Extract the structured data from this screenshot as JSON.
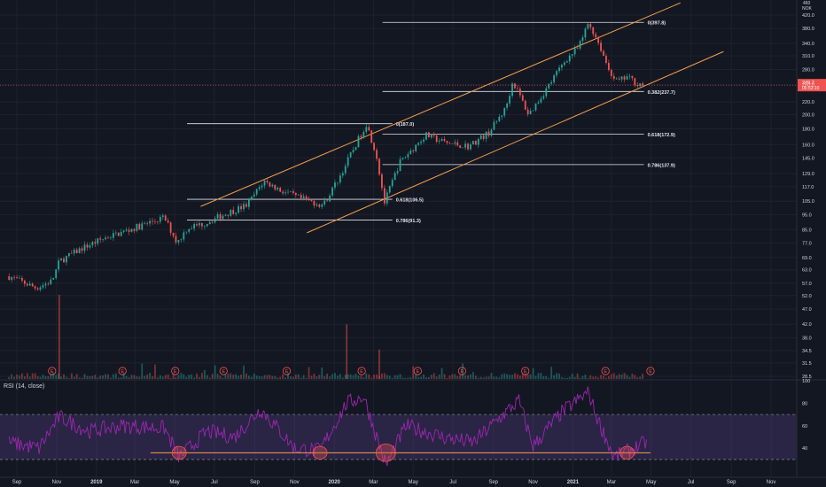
{
  "price_axis": {
    "currency": "NOK",
    "ticks": [
      "420.0",
      "380.0",
      "340.0",
      "310.0",
      "280.0",
      "250.0",
      "220.0",
      "200.0",
      "180.0",
      "160.0",
      "145.0",
      "129.0",
      "117.0",
      "105.0",
      "95.0",
      "85.0",
      "77.0",
      "69.0",
      "63.0",
      "57.0",
      "52.0",
      "47.0",
      "42.0",
      "38.0",
      "34.5",
      "31.5",
      "28.5"
    ],
    "top_label": "460",
    "current_price": "249.2",
    "current_sub": "05:53:10",
    "colors": {
      "current_bg": "#ef5350",
      "grid": "#1e222d",
      "text": "#d1d4dc"
    }
  },
  "rsi_panel": {
    "label": "RSI (14, close)",
    "ticks": [
      "100",
      "80",
      "60",
      "40"
    ],
    "overbought": 70,
    "oversold": 30,
    "colors": {
      "line": "#9c27b0",
      "band": "#7e57c2"
    }
  },
  "time_axis": [
    "Sep",
    "Nov",
    "2019",
    "Mar",
    "May",
    "Jul",
    "Sep",
    "Nov",
    "2020",
    "Mar",
    "May",
    "Jul",
    "Sep",
    "Nov",
    "2021",
    "Mar",
    "May",
    "Jul",
    "Sep",
    "Nov"
  ],
  "earnings_markers": [
    "E",
    "E",
    "E",
    "E",
    "E",
    "E",
    "E",
    "E",
    "E",
    "E",
    "E"
  ],
  "fib_levels": [
    {
      "label": "0(397.8)"
    },
    {
      "label": "0.382(237.7)"
    },
    {
      "label": "0.618(172.9)"
    },
    {
      "label": "0.786(137.9)"
    },
    {
      "label": "0(187.0)"
    },
    {
      "label": "0.618(106.5)"
    },
    {
      "label": "0.786(91.3)"
    }
  ],
  "chart_data": {
    "type": "candlestick",
    "symbol_currency": "NOK",
    "scale": "log",
    "y_range": [
      28.5,
      460
    ],
    "x_range": [
      "2018-09",
      "2021-11"
    ],
    "price_path": [
      {
        "date": "2018-08-20",
        "price": 60
      },
      {
        "date": "2018-10-01",
        "price": 55
      },
      {
        "date": "2018-10-25",
        "price": 58
      },
      {
        "date": "2018-11-05",
        "price": 67
      },
      {
        "date": "2018-12-10",
        "price": 74
      },
      {
        "date": "2019-01-15",
        "price": 80
      },
      {
        "date": "2019-02-15",
        "price": 84
      },
      {
        "date": "2019-03-20",
        "price": 89
      },
      {
        "date": "2019-04-15",
        "price": 93
      },
      {
        "date": "2019-05-05",
        "price": 77
      },
      {
        "date": "2019-05-20",
        "price": 86
      },
      {
        "date": "2019-06-15",
        "price": 89
      },
      {
        "date": "2019-07-15",
        "price": 95
      },
      {
        "date": "2019-08-20",
        "price": 102
      },
      {
        "date": "2019-09-15",
        "price": 122
      },
      {
        "date": "2019-10-10",
        "price": 114
      },
      {
        "date": "2019-11-10",
        "price": 107
      },
      {
        "date": "2019-12-15",
        "price": 102
      },
      {
        "date": "2020-01-10",
        "price": 127
      },
      {
        "date": "2020-02-19",
        "price": 187
      },
      {
        "date": "2020-03-05",
        "price": 150
      },
      {
        "date": "2020-03-18",
        "price": 104
      },
      {
        "date": "2020-04-10",
        "price": 140
      },
      {
        "date": "2020-05-20",
        "price": 172
      },
      {
        "date": "2020-06-20",
        "price": 162
      },
      {
        "date": "2020-07-25",
        "price": 158
      },
      {
        "date": "2020-08-25",
        "price": 175
      },
      {
        "date": "2020-09-20",
        "price": 210
      },
      {
        "date": "2020-10-01",
        "price": 257
      },
      {
        "date": "2020-10-25",
        "price": 200
      },
      {
        "date": "2020-11-20",
        "price": 240
      },
      {
        "date": "2020-12-20",
        "price": 300
      },
      {
        "date": "2021-01-10",
        "price": 330
      },
      {
        "date": "2021-01-25",
        "price": 397.8
      },
      {
        "date": "2021-02-10",
        "price": 340
      },
      {
        "date": "2021-02-25",
        "price": 280
      },
      {
        "date": "2021-03-10",
        "price": 255
      },
      {
        "date": "2021-03-25",
        "price": 265
      },
      {
        "date": "2021-04-10",
        "price": 252
      },
      {
        "date": "2021-04-20",
        "price": 249.2
      }
    ],
    "current_price": 249.2,
    "channel": {
      "upper": [
        {
          "date": "2019-06-10",
          "price": 101
        },
        {
          "date": "2021-06-15",
          "price": 460
        }
      ],
      "lower": [
        {
          "date": "2019-11-20",
          "price": 83
        },
        {
          "date": "2021-08-20",
          "price": 320
        }
      ]
    },
    "fibonacci": [
      {
        "swing": "2020",
        "level": 0,
        "price": 187.0,
        "from": "2019-05-20",
        "to": "2020-03-30"
      },
      {
        "swing": "2020",
        "level": 0.618,
        "price": 106.5,
        "from": "2019-05-20",
        "to": "2020-03-30"
      },
      {
        "swing": "2020",
        "level": 0.786,
        "price": 91.3,
        "from": "2019-05-20",
        "to": "2020-03-30"
      },
      {
        "swing": "2021",
        "level": 0,
        "price": 397.8,
        "from": "2020-03-15",
        "to": "2021-04-20"
      },
      {
        "swing": "2021",
        "level": 0.382,
        "price": 237.7,
        "from": "2020-03-15",
        "to": "2021-04-20"
      },
      {
        "swing": "2021",
        "level": 0.618,
        "price": 172.9,
        "from": "2020-03-15",
        "to": "2021-04-20"
      },
      {
        "swing": "2021",
        "level": 0.786,
        "price": 137.9,
        "from": "2020-03-15",
        "to": "2021-04-20"
      }
    ],
    "volume_spikes": [
      {
        "date": "2018-11-05",
        "level": 1.0
      },
      {
        "date": "2020-01-20",
        "level": 0.65
      },
      {
        "date": "2020-03-10",
        "level": 0.35
      }
    ],
    "earnings_dates": [
      "2018-10-25",
      "2019-02-10",
      "2019-05-02",
      "2019-07-15",
      "2019-10-20",
      "2020-02-12",
      "2020-05-08",
      "2020-07-15",
      "2020-10-20",
      "2021-02-20",
      "2021-04-30"
    ],
    "rsi": {
      "period": 14,
      "levels": [
        30,
        70
      ],
      "ylim": [
        15,
        100
      ],
      "support_line": 36,
      "support_range": [
        "2019-03-25",
        "2021-04-30"
      ],
      "path": [
        {
          "date": "2018-08-20",
          "value": 45
        },
        {
          "date": "2018-10-05",
          "value": 40
        },
        {
          "date": "2018-11-05",
          "value": 68
        },
        {
          "date": "2018-12-20",
          "value": 55
        },
        {
          "date": "2019-02-10",
          "value": 60
        },
        {
          "date": "2019-04-15",
          "value": 58
        },
        {
          "date": "2019-05-08",
          "value": 32
        },
        {
          "date": "2019-06-20",
          "value": 55
        },
        {
          "date": "2019-08-01",
          "value": 50
        },
        {
          "date": "2019-09-10",
          "value": 75
        },
        {
          "date": "2019-11-01",
          "value": 40
        },
        {
          "date": "2019-12-10",
          "value": 38
        },
        {
          "date": "2020-01-20",
          "value": 80
        },
        {
          "date": "2020-02-15",
          "value": 86
        },
        {
          "date": "2020-03-20",
          "value": 25
        },
        {
          "date": "2020-04-20",
          "value": 60
        },
        {
          "date": "2020-06-15",
          "value": 50
        },
        {
          "date": "2020-08-01",
          "value": 45
        },
        {
          "date": "2020-09-20",
          "value": 72
        },
        {
          "date": "2020-10-10",
          "value": 82
        },
        {
          "date": "2020-11-01",
          "value": 42
        },
        {
          "date": "2020-12-15",
          "value": 72
        },
        {
          "date": "2021-01-25",
          "value": 90
        },
        {
          "date": "2021-02-05",
          "value": 70
        },
        {
          "date": "2021-03-05",
          "value": 32
        },
        {
          "date": "2021-04-05",
          "value": 40
        },
        {
          "date": "2021-04-25",
          "value": 46
        }
      ],
      "highlighted_lows": [
        "2019-05-08",
        "2019-12-10",
        "2020-03-20",
        "2021-03-25"
      ]
    }
  }
}
